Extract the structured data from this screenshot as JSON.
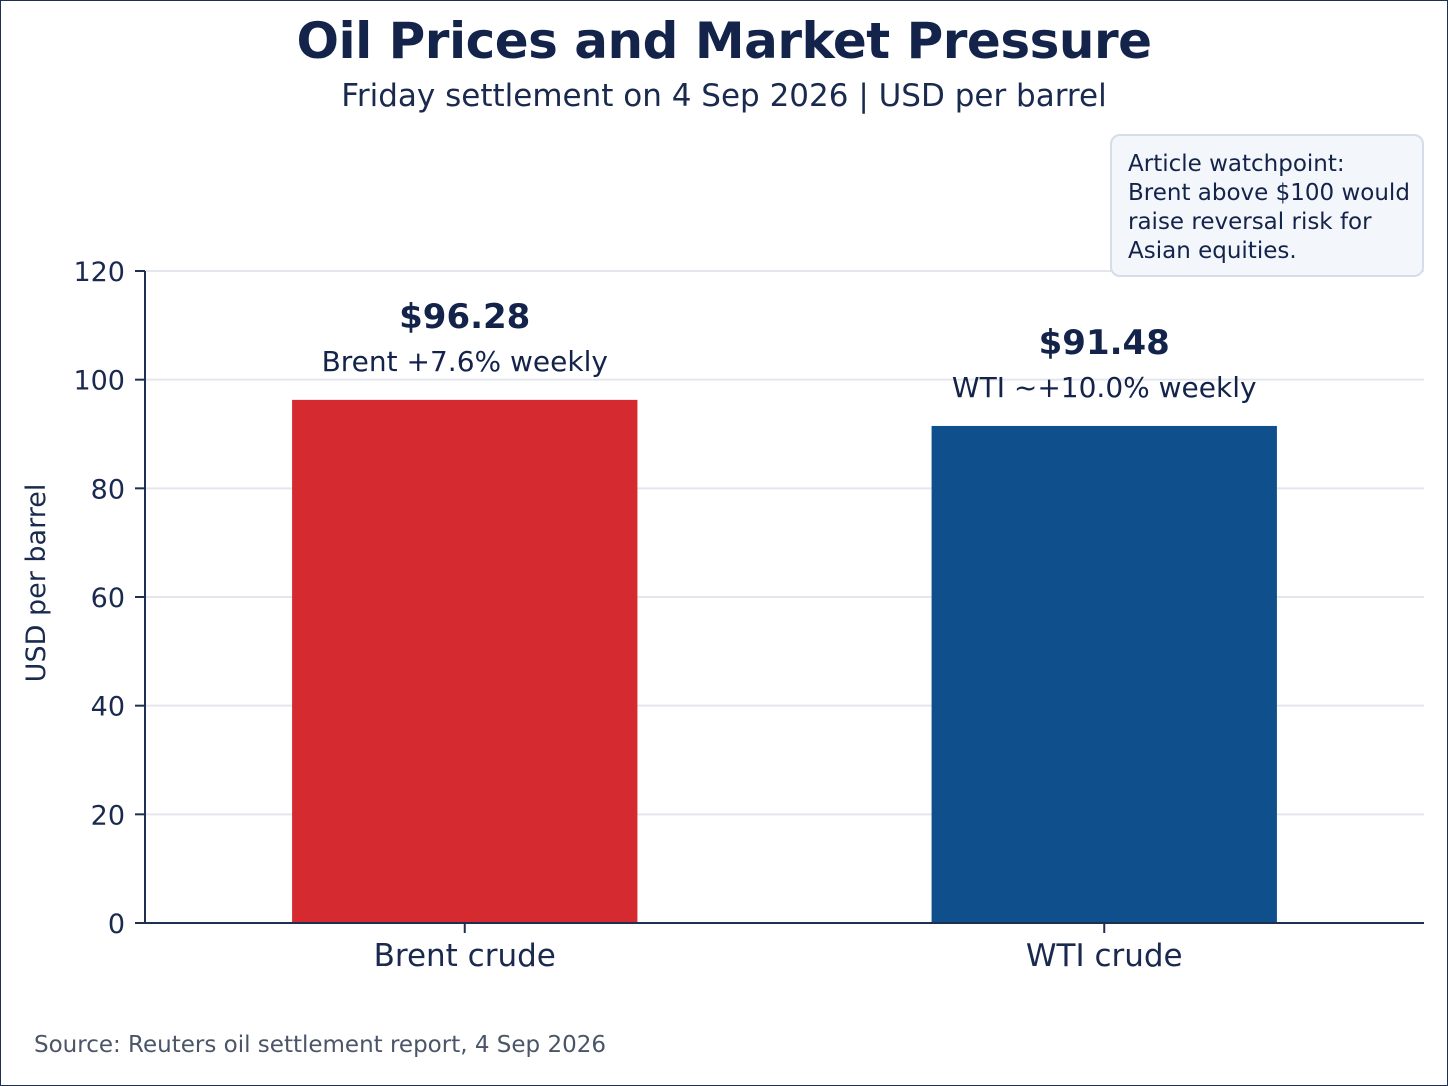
{
  "header": {
    "title": "Oil Prices and Market Pressure",
    "subtitle": "Friday settlement on 4 Sep 2026 | USD per barrel"
  },
  "callout": {
    "lines": [
      "Article watchpoint:",
      "Brent above $100 would",
      "raise reversal risk for",
      "Asian equities."
    ]
  },
  "source": "Source: Reuters oil settlement report, 4 Sep 2026",
  "colors": {
    "brent": "#d42a30",
    "wti": "#0f4f8c",
    "axis": "#1f2f52",
    "grid": "#e3e7ed"
  },
  "chart_data": {
    "type": "bar",
    "title": "Oil Prices and Market Pressure",
    "subtitle": "Friday settlement on 4 Sep 2026 | USD per barrel",
    "xlabel": "",
    "ylabel": "USD per barrel",
    "ylim": [
      0,
      120
    ],
    "yticks": [
      0,
      20,
      40,
      60,
      80,
      100,
      120
    ],
    "grid": true,
    "categories": [
      "Brent crude",
      "WTI crude"
    ],
    "values": [
      96.28,
      91.48
    ],
    "value_labels": [
      "$96.28",
      "$91.48"
    ],
    "annotations": [
      "Brent +7.6% weekly",
      "WTI ~+10.0% weekly"
    ],
    "bar_colors": [
      "#d42a30",
      "#0f4f8c"
    ]
  }
}
